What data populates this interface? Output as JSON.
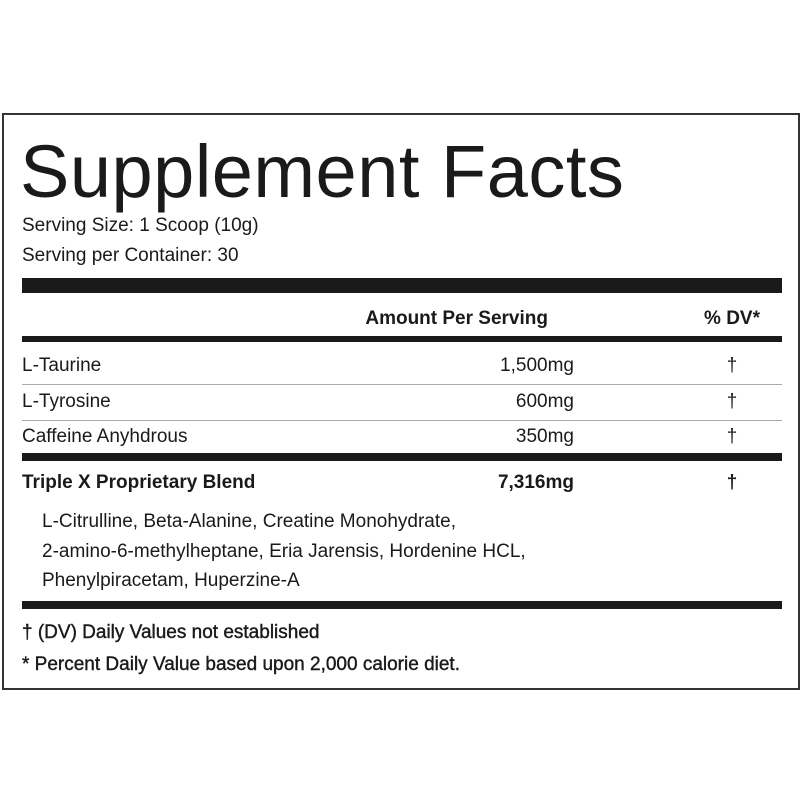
{
  "title": "Supplement Facts",
  "serving_size": "Serving Size: 1 Scoop (10g)",
  "servings_per_container": "Serving per Container: 30",
  "table": {
    "header": [
      "Amount Per Serving",
      "% DV*"
    ],
    "rows": [
      [
        "L-Taurine",
        "1,500mg",
        "†"
      ],
      [
        "L-Tyrosine",
        "600mg",
        "†"
      ],
      [
        "Caffeine Anyhdrous",
        "350mg",
        "†"
      ]
    ]
  },
  "blend": {
    "name": "Triple X Proprietary Blend",
    "amount": "7,316mg",
    "dv": "†",
    "ingredients": [
      "L-Citrulline, Beta-Alanine, Creatine Monohydrate,",
      "2-amino-6-methylheptane, Eria Jarensis, Hordenine HCL,",
      "Phenylpiracetam, Huperzine-A"
    ]
  },
  "footnotes": [
    "† (DV) Daily Values not established",
    "* Percent Daily Value based upon 2,000 calorie diet."
  ]
}
